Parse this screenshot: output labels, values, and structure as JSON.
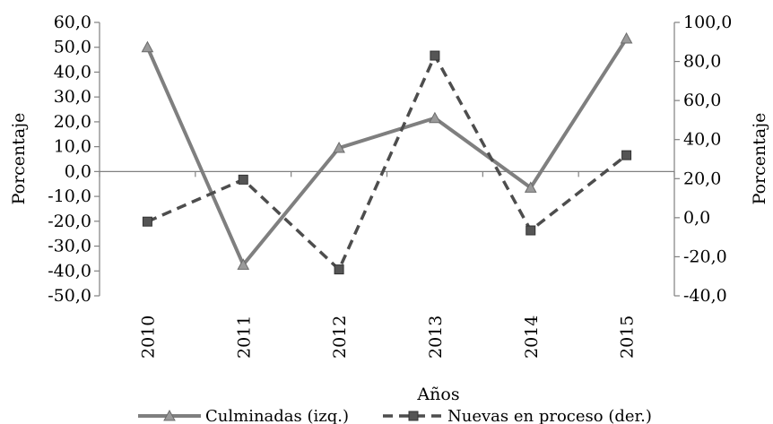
{
  "chart_data": {
    "type": "line",
    "categories": [
      "2010",
      "2011",
      "2012",
      "2013",
      "2014",
      "2015"
    ],
    "xlabel": "Años",
    "ylabel_left": "Porcentaje",
    "ylabel_right": "Porcentaje",
    "y_left": {
      "min": -50,
      "max": 60,
      "step": 10
    },
    "y_right": {
      "min": -40,
      "max": 100,
      "step": 20
    },
    "left_ticks": [
      "60,0",
      "50,0",
      "40,0",
      "30,0",
      "20,0",
      "10,0",
      "0,0",
      "-10,0",
      "-20,0",
      "-30,0",
      "-40,0",
      "-50,0"
    ],
    "right_ticks": [
      "100,0",
      "80,0",
      "60,0",
      "40,0",
      "20,0",
      "0,0",
      "-20,0",
      "-40,0"
    ],
    "series": [
      {
        "name": "Culminadas (izq.)",
        "axis": "left",
        "style": "solid",
        "marker": "triangle",
        "color": "#7f7f7f",
        "values": [
          50.0,
          -37.5,
          9.5,
          21.5,
          -6.5,
          53.5
        ]
      },
      {
        "name": "Nuevas en proceso (der.)",
        "axis": "right",
        "style": "dashed",
        "marker": "square",
        "color": "#4d4d4d",
        "values": [
          -2.0,
          19.5,
          -26.5,
          83.0,
          -6.5,
          32.0
        ]
      }
    ],
    "legend_position": "bottom",
    "grid": false
  }
}
